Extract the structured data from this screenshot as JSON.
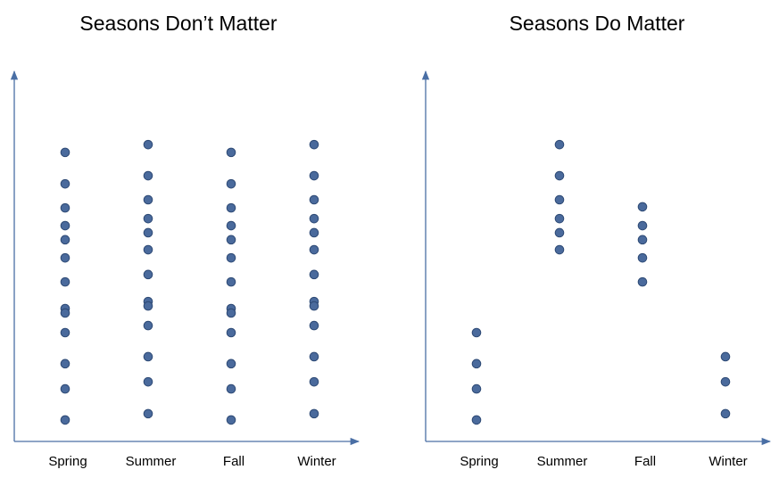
{
  "chart_data": [
    {
      "type": "strip",
      "title": "Seasons Don’t Matter",
      "categories": [
        "Spring",
        "Summer",
        "Fall",
        "Winter"
      ],
      "values": [
        [
          78.1,
          69.6,
          63.1,
          58.3,
          54.5,
          49.6,
          43.1,
          35.9,
          34.7,
          29.4,
          21.0,
          14.2,
          5.8
        ],
        [
          80.2,
          71.8,
          65.3,
          60.2,
          56.4,
          51.8,
          45.1,
          37.8,
          36.6,
          31.3,
          22.9,
          16.1,
          7.5
        ],
        [
          78.1,
          69.6,
          63.1,
          58.3,
          54.5,
          49.6,
          43.1,
          35.9,
          34.7,
          29.4,
          21.0,
          14.2,
          5.8
        ],
        [
          80.2,
          71.8,
          65.3,
          60.2,
          56.4,
          51.8,
          45.1,
          37.8,
          36.6,
          31.3,
          22.9,
          16.1,
          7.5
        ]
      ],
      "color": "#4a6a9c",
      "ylim": [
        0,
        100
      ]
    },
    {
      "type": "strip",
      "title": "Seasons Do Matter",
      "categories": [
        "Spring",
        "Summer",
        "Fall",
        "Winter"
      ],
      "values": [
        [
          29.4,
          21.0,
          14.2,
          5.8
        ],
        [
          80.2,
          71.8,
          65.3,
          60.2,
          56.4,
          51.8
        ],
        [
          63.4,
          58.3,
          54.5,
          49.6,
          43.1
        ],
        [
          22.9,
          16.1,
          7.5
        ]
      ],
      "color": "#4a6a9c",
      "ylim": [
        0,
        100
      ]
    }
  ]
}
